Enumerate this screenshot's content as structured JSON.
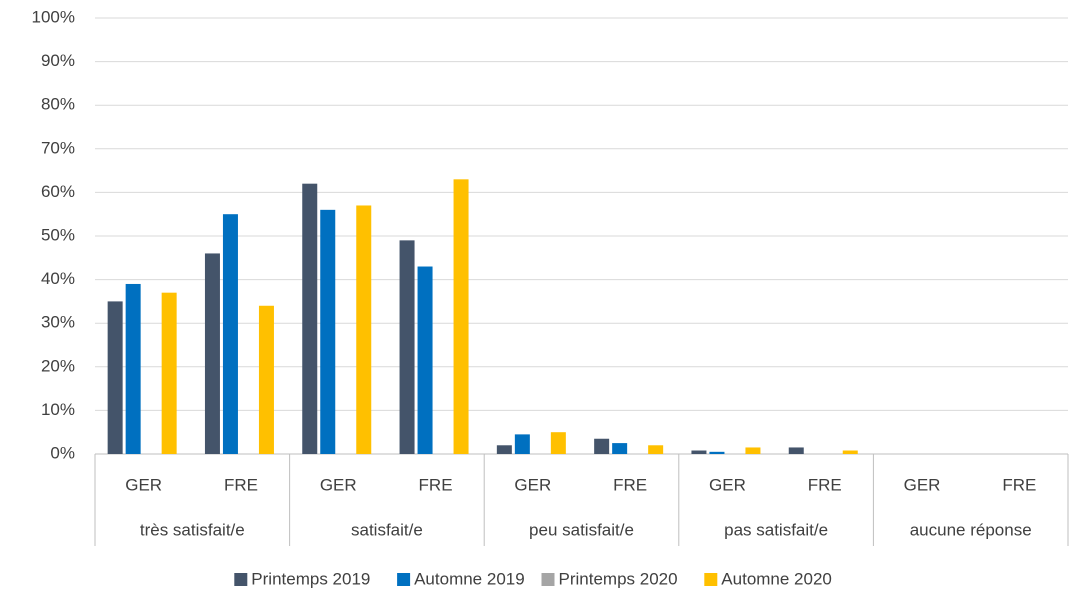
{
  "chart_data": {
    "type": "bar",
    "groups": [
      {
        "label": "très satisfait/e",
        "categories": [
          "GER",
          "FRE"
        ]
      },
      {
        "label": "satisfait/e",
        "categories": [
          "GER",
          "FRE"
        ]
      },
      {
        "label": "peu satisfait/e",
        "categories": [
          "GER",
          "FRE"
        ]
      },
      {
        "label": "pas satisfait/e",
        "categories": [
          "GER",
          "FRE"
        ]
      },
      {
        "label": "aucune réponse",
        "categories": [
          "GER",
          "FRE"
        ]
      }
    ],
    "series": [
      {
        "name": "Printemps 2019",
        "color": "#44546a",
        "values": [
          35,
          46,
          62,
          49,
          2,
          3.5,
          0.8,
          1.5,
          null,
          null
        ]
      },
      {
        "name": "Automne 2019",
        "color": "#0070c0",
        "values": [
          39,
          55,
          56,
          43,
          4.5,
          2.5,
          0.5,
          null,
          null,
          null
        ]
      },
      {
        "name": "Printemps 2020",
        "color": "#a5a5a5",
        "values": [
          null,
          null,
          null,
          null,
          null,
          null,
          null,
          null,
          null,
          null
        ]
      },
      {
        "name": "Automne 2020",
        "color": "#ffc000",
        "values": [
          37,
          34,
          57,
          63,
          5,
          2,
          1.5,
          0.8,
          null,
          null
        ]
      }
    ],
    "ylim": [
      0,
      100
    ],
    "yticks": [
      {
        "value": 0,
        "label": "0%"
      },
      {
        "value": 10,
        "label": "10%"
      },
      {
        "value": 20,
        "label": "20%"
      },
      {
        "value": 30,
        "label": "30%"
      },
      {
        "value": 40,
        "label": "40%"
      },
      {
        "value": 50,
        "label": "50%"
      },
      {
        "value": 60,
        "label": "60%"
      },
      {
        "value": 70,
        "label": "70%"
      },
      {
        "value": 80,
        "label": "80%"
      },
      {
        "value": 90,
        "label": "90%"
      },
      {
        "value": 100,
        "label": "100%"
      }
    ],
    "grid": true,
    "legend": "bottom"
  }
}
